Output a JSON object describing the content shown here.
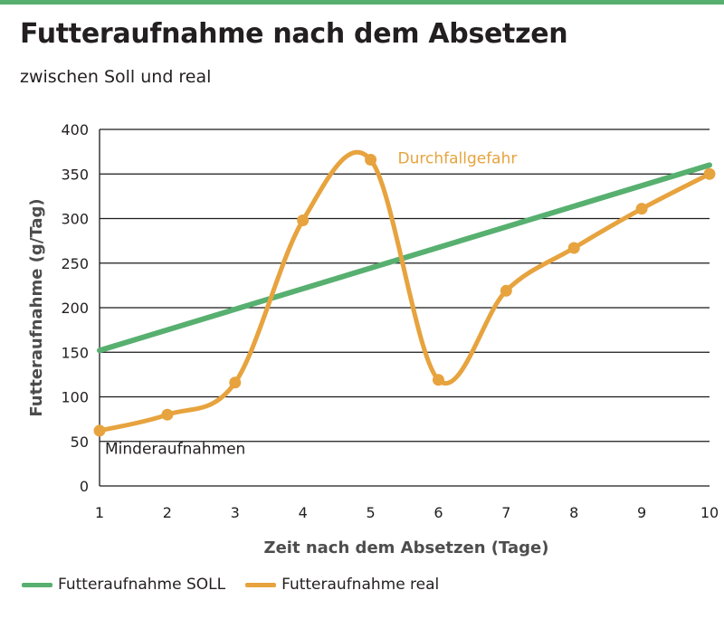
{
  "colors": {
    "accent": "#57b06f",
    "soll": "#57b06f",
    "real": "#e7a33e",
    "grid": "#1a1a1a"
  },
  "chart_data": {
    "type": "line",
    "title": "Futteraufnahme nach dem Absetzen",
    "subtitle": "zwischen Soll und real",
    "xlabel": "Zeit nach dem Absetzen (Tage)",
    "ylabel": "Futteraufnahme (g/Tag)",
    "x": [
      1,
      2,
      3,
      4,
      5,
      6,
      7,
      8,
      9,
      10
    ],
    "xlim": [
      1,
      10
    ],
    "ylim": [
      0,
      400
    ],
    "xticks": [
      1,
      2,
      3,
      4,
      5,
      6,
      7,
      8,
      9,
      10
    ],
    "yticks": [
      0,
      50,
      100,
      150,
      200,
      250,
      300,
      350,
      400
    ],
    "grid": "horizontal",
    "legend_position": "bottom",
    "series": [
      {
        "name": "Futteraufnahme SOLL",
        "color": "#57b06f",
        "points": [
          [
            1,
            152
          ],
          [
            10,
            360
          ]
        ]
      },
      {
        "name": "Futteraufnahme real",
        "color": "#e7a33e",
        "points": [
          [
            1,
            62
          ],
          [
            2,
            80
          ],
          [
            3,
            116
          ],
          [
            4,
            298
          ],
          [
            5,
            366
          ],
          [
            6,
            119
          ],
          [
            7,
            219
          ],
          [
            8,
            267
          ],
          [
            9,
            311
          ],
          [
            10,
            350
          ]
        ]
      }
    ],
    "annotations": [
      {
        "text": "Durchfallgefahr",
        "x": 5.4,
        "y": 362,
        "color": "#e7a33e"
      },
      {
        "text": "Minderaufnahmen",
        "x": 1.08,
        "y": 36,
        "color": "#231f20"
      }
    ]
  }
}
